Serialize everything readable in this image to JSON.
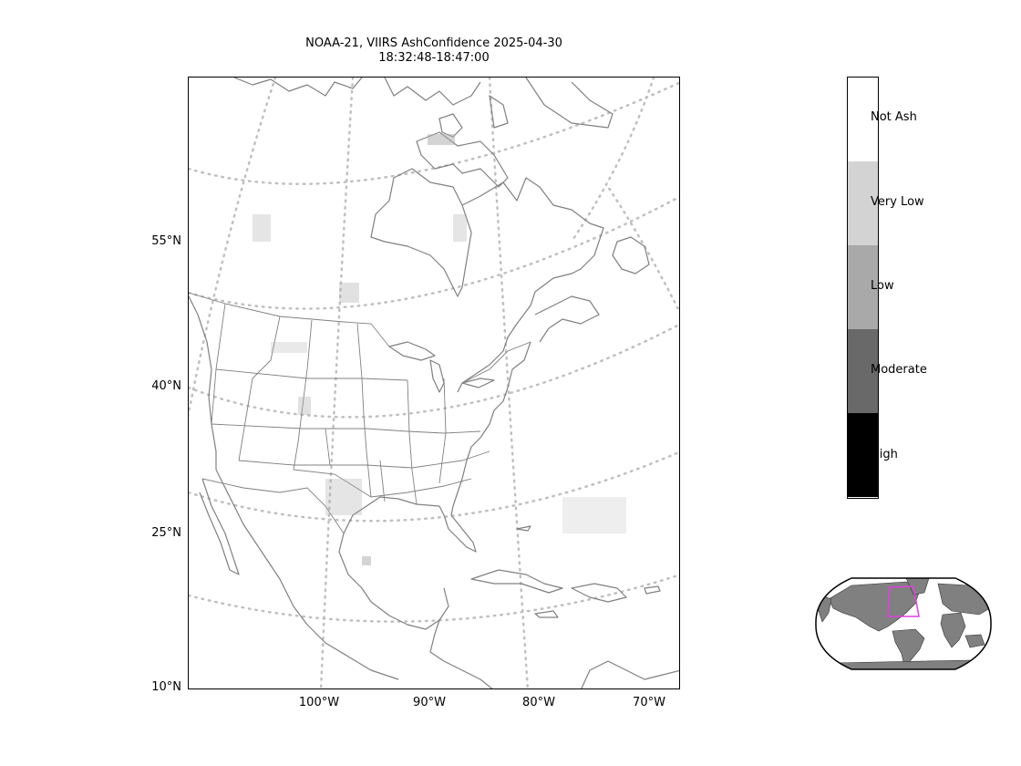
{
  "title": {
    "line1": "NOAA-21, VIIRS AshConfidence 2025-04-30",
    "line2": "18:32:48-18:47:00"
  },
  "map": {
    "projection": "lambert-conformal",
    "coastline_color": "#808080",
    "gridline_color": "#bfbfbf",
    "gridline_style": "dotted",
    "lat_labels": [
      "55°N",
      "40°N",
      "25°N",
      "10°N"
    ],
    "lon_labels": [
      "100°W",
      "90°W",
      "80°W",
      "70°W"
    ]
  },
  "colorbar": {
    "categories": [
      {
        "label": "Not Ash",
        "color": "#ffffff"
      },
      {
        "label": "Very Low",
        "color": "#d3d3d3"
      },
      {
        "label": "Low",
        "color": "#a9a9a9"
      },
      {
        "label": "Moderate",
        "color": "#696969"
      },
      {
        "label": "High",
        "color": "#000000"
      }
    ]
  },
  "inset": {
    "land_color": "#808080",
    "ocean_color": "#ffffff",
    "extent_box_color": "#e040e0"
  }
}
